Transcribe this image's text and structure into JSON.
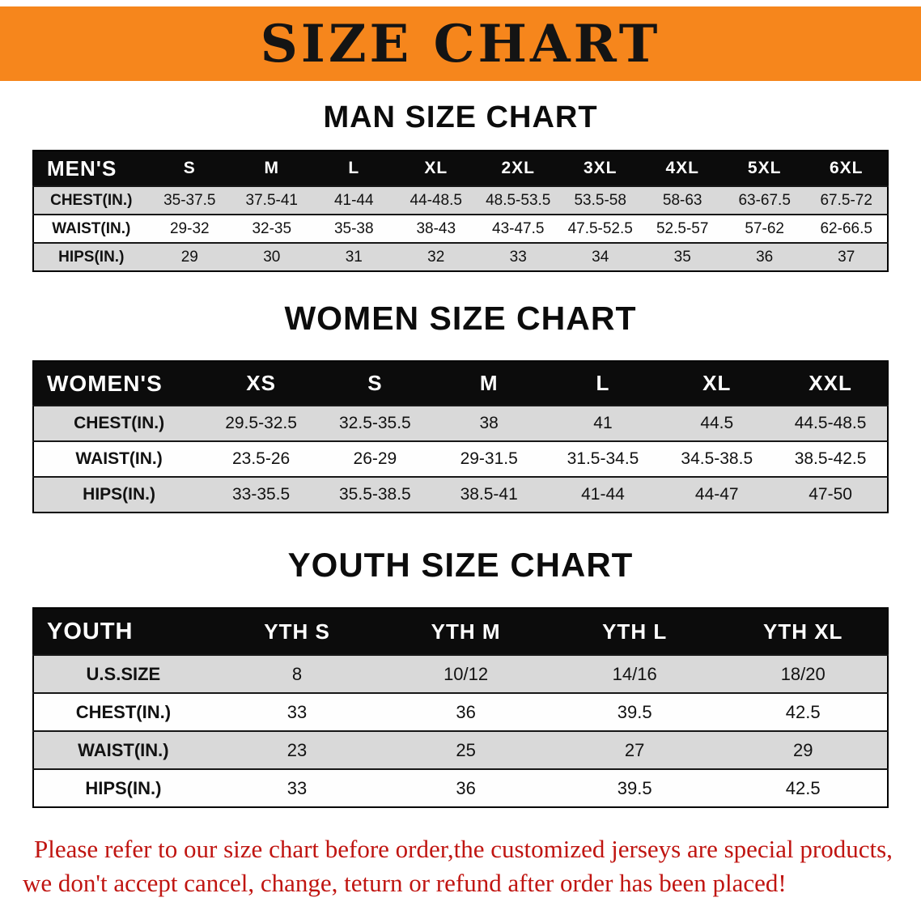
{
  "banner": {
    "title": "SIZE CHART",
    "bg_color": "#f6861c",
    "text_color": "#141414"
  },
  "colors": {
    "table_header_bg": "#0c0c0c",
    "table_header_text": "#ffffff",
    "row_stripe": "#d9d9d9",
    "footer_text": "#c01511"
  },
  "sections": [
    {
      "id": "men",
      "heading": "MAN SIZE CHART",
      "table": {
        "header": [
          "MEN'S",
          "S",
          "M",
          "L",
          "XL",
          "2XL",
          "3XL",
          "4XL",
          "5XL",
          "6XL"
        ],
        "rows": [
          [
            "CHEST(IN.)",
            "35-37.5",
            "37.5-41",
            "41-44",
            "44-48.5",
            "48.5-53.5",
            "53.5-58",
            "58-63",
            "63-67.5",
            "67.5-72"
          ],
          [
            "WAIST(IN.)",
            "29-32",
            "32-35",
            "35-38",
            "38-43",
            "43-47.5",
            "47.5-52.5",
            "52.5-57",
            "57-62",
            "62-66.5"
          ],
          [
            "HIPS(IN.)",
            "29",
            "30",
            "31",
            "32",
            "33",
            "34",
            "35",
            "36",
            "37"
          ]
        ]
      }
    },
    {
      "id": "women",
      "heading": "WOMEN SIZE CHART",
      "table": {
        "header": [
          "WOMEN'S",
          "XS",
          "S",
          "M",
          "L",
          "XL",
          "XXL"
        ],
        "rows": [
          [
            "CHEST(IN.)",
            "29.5-32.5",
            "32.5-35.5",
            "38",
            "41",
            "44.5",
            "44.5-48.5"
          ],
          [
            "WAIST(IN.)",
            "23.5-26",
            "26-29",
            "29-31.5",
            "31.5-34.5",
            "34.5-38.5",
            "38.5-42.5"
          ],
          [
            "HIPS(IN.)",
            "33-35.5",
            "35.5-38.5",
            "38.5-41",
            "41-44",
            "44-47",
            "47-50"
          ]
        ]
      }
    },
    {
      "id": "youth",
      "heading": "YOUTH SIZE CHART",
      "table": {
        "header": [
          "YOUTH",
          "YTH S",
          "YTH M",
          "YTH L",
          "YTH XL"
        ],
        "rows": [
          [
            "U.S.SIZE",
            "8",
            "10/12",
            "14/16",
            "18/20"
          ],
          [
            "CHEST(IN.)",
            "33",
            "36",
            "39.5",
            "42.5"
          ],
          [
            "WAIST(IN.)",
            "23",
            "25",
            "27",
            "29"
          ],
          [
            "HIPS(IN.)",
            "33",
            "36",
            "39.5",
            "42.5"
          ]
        ]
      }
    }
  ],
  "footer_note": {
    "lines": [
      "Please refer to our size chart before order,the customized jerseys are special products,",
      "we don't accept cancel, change, teturn or refund after order has been placed!"
    ]
  }
}
